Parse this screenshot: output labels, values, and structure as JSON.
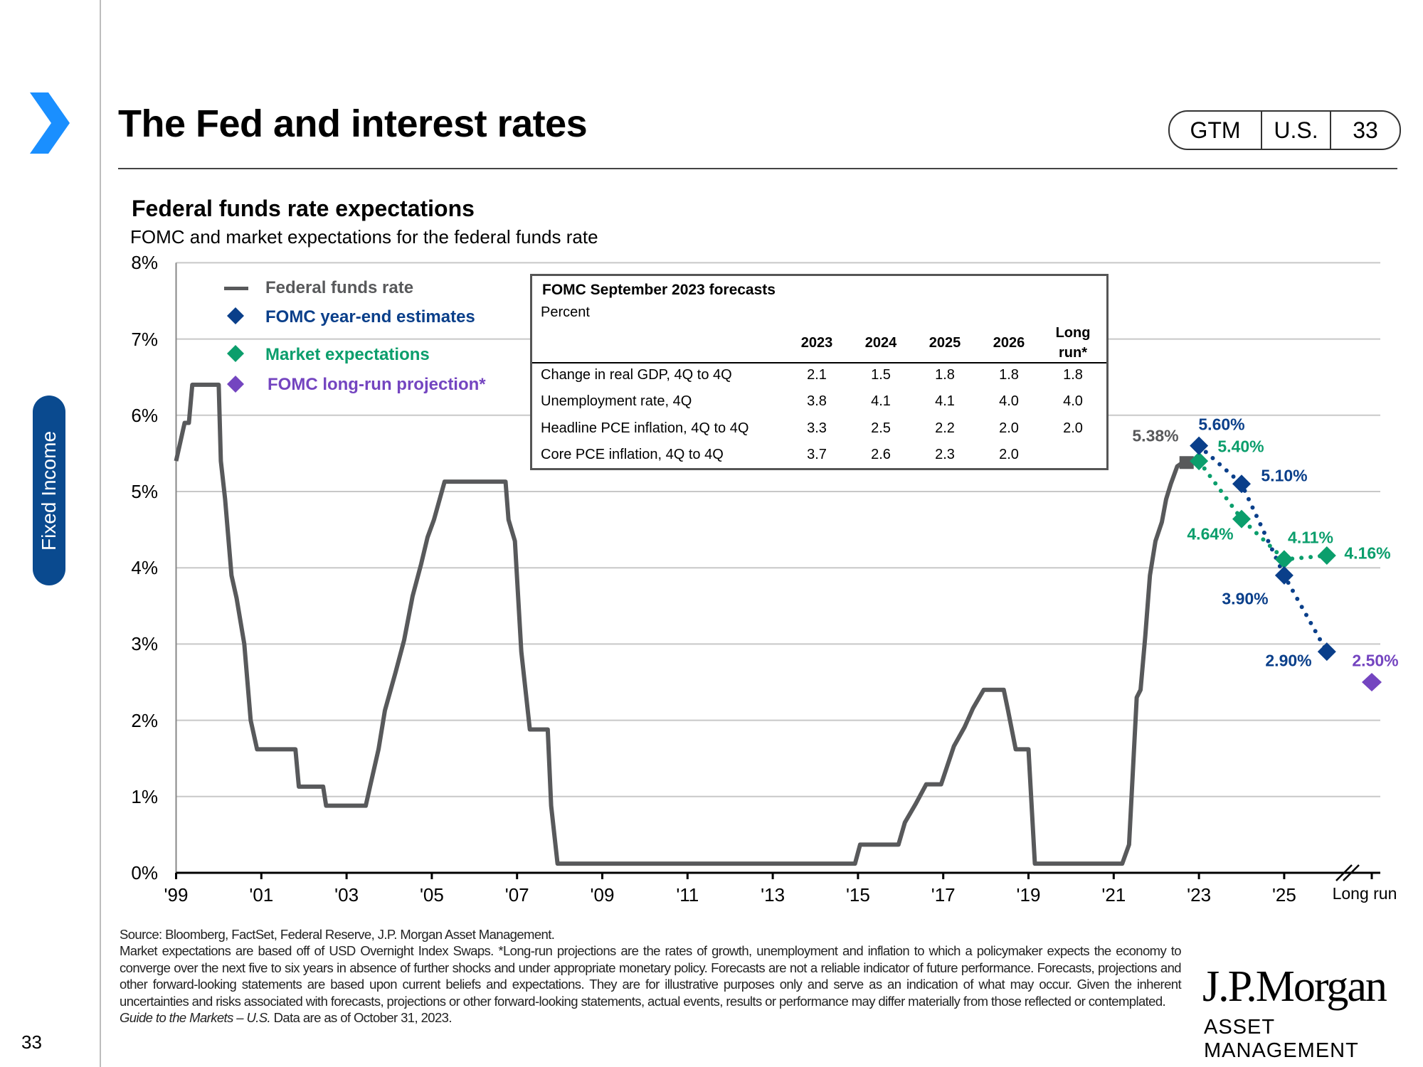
{
  "sidebar": {
    "section": "Fixed Income",
    "page_number": "33",
    "icon": "chevron-right-icon",
    "accent": "#1a8fff"
  },
  "header": {
    "title": "The Fed and interest rates",
    "badges": [
      "GTM",
      "U.S.",
      "33"
    ]
  },
  "chart_data": {
    "type": "line",
    "title": "Federal funds rate expectations",
    "subtitle": "FOMC and market expectations for the federal funds rate",
    "y_ticks": [
      "0%",
      "1%",
      "2%",
      "3%",
      "4%",
      "5%",
      "6%",
      "7%",
      "8%"
    ],
    "ylim": [
      0,
      8
    ],
    "x_ticks": [
      "'99",
      "'01",
      "'03",
      "'05",
      "'07",
      "'09",
      "'11",
      "'13",
      "'15",
      "'17",
      "'19",
      "'21",
      "'23",
      "'25",
      "Long run"
    ],
    "grid": true,
    "legend_placement": "top-left",
    "legend": [
      "Federal funds rate",
      "FOMC  year-end estimates",
      "Market expectations",
      "FOMC  long-run  projection*"
    ],
    "colors": {
      "fed_funds": "#58595b",
      "fomc": "#0a3f8a",
      "market": "#0b9e6c",
      "long_run": "#7445c0"
    },
    "series": [
      {
        "name": "Federal funds rate",
        "style": "step-line",
        "points": [
          [
            1999.0,
            5.4
          ],
          [
            1999.1,
            5.65
          ],
          [
            1999.2,
            5.9
          ],
          [
            1999.3,
            5.9
          ],
          [
            1999.38,
            6.4
          ],
          [
            2000.0,
            6.4
          ],
          [
            2000.05,
            5.4
          ],
          [
            2000.15,
            4.9
          ],
          [
            2000.3,
            3.9
          ],
          [
            2000.42,
            3.6
          ],
          [
            2000.6,
            3.0
          ],
          [
            2000.75,
            2.0
          ],
          [
            2000.9,
            1.62
          ],
          [
            2001.8,
            1.62
          ],
          [
            2001.88,
            1.13
          ],
          [
            2002.45,
            1.13
          ],
          [
            2002.52,
            0.88
          ],
          [
            2003.45,
            0.88
          ],
          [
            2003.55,
            1.13
          ],
          [
            2003.75,
            1.62
          ],
          [
            2003.9,
            2.13
          ],
          [
            2004.15,
            2.63
          ],
          [
            2004.35,
            3.05
          ],
          [
            2004.55,
            3.63
          ],
          [
            2004.75,
            4.05
          ],
          [
            2004.9,
            4.4
          ],
          [
            2005.05,
            4.63
          ],
          [
            2005.3,
            5.13
          ],
          [
            2006.73,
            5.13
          ],
          [
            2006.8,
            4.63
          ],
          [
            2006.95,
            4.35
          ],
          [
            2007.1,
            2.9
          ],
          [
            2007.3,
            1.88
          ],
          [
            2007.72,
            1.88
          ],
          [
            2007.8,
            0.88
          ],
          [
            2007.95,
            0.12
          ],
          [
            2014.93,
            0.12
          ],
          [
            2015.05,
            0.37
          ],
          [
            2015.95,
            0.37
          ],
          [
            2016.1,
            0.66
          ],
          [
            2016.35,
            0.9
          ],
          [
            2016.6,
            1.16
          ],
          [
            2016.95,
            1.16
          ],
          [
            2017.1,
            1.41
          ],
          [
            2017.25,
            1.66
          ],
          [
            2017.5,
            1.91
          ],
          [
            2017.7,
            2.16
          ],
          [
            2017.95,
            2.4
          ],
          [
            2018.42,
            2.4
          ],
          [
            2018.52,
            2.13
          ],
          [
            2018.7,
            1.62
          ],
          [
            2019.0,
            1.62
          ],
          [
            2019.15,
            0.12
          ],
          [
            2021.2,
            0.12
          ],
          [
            2021.36,
            0.37
          ],
          [
            2021.54,
            2.3
          ],
          [
            2021.63,
            2.4
          ],
          [
            2021.74,
            3.1
          ],
          [
            2021.85,
            3.9
          ],
          [
            2021.98,
            4.35
          ],
          [
            2022.13,
            4.6
          ],
          [
            2022.23,
            4.9
          ],
          [
            2022.34,
            5.1
          ],
          [
            2022.49,
            5.33
          ],
          [
            2022.62,
            5.38
          ],
          [
            2022.81,
            5.38
          ]
        ],
        "last_label": "5.38%"
      },
      {
        "name": "FOMC  year-end estimates",
        "x": [
          "2023",
          "2024",
          "2025",
          "2026"
        ],
        "values": [
          5.6,
          5.1,
          3.9,
          2.9
        ],
        "labels": [
          "5.60%",
          "5.10%",
          "3.90%",
          "2.90%"
        ]
      },
      {
        "name": "Market expectations",
        "x": [
          "2023",
          "2024",
          "2025",
          "2026"
        ],
        "values": [
          5.4,
          4.64,
          4.11,
          4.16
        ],
        "labels": [
          "5.40%",
          "4.64%",
          "4.11%",
          "4.16%"
        ]
      },
      {
        "name": "FOMC  long-run  projection*",
        "x": [
          "Long run"
        ],
        "values": [
          2.5
        ],
        "labels": [
          "2.50%"
        ]
      }
    ]
  },
  "table": {
    "title": "FOMC September 2023 forecasts",
    "unit": "Percent",
    "columns": [
      "2023",
      "2024",
      "2025",
      "2026",
      "Long",
      "run*"
    ],
    "rows": [
      {
        "label": "Change in real GDP, 4Q to 4Q",
        "values": [
          "2.1",
          "1.5",
          "1.8",
          "1.8",
          "1.8"
        ]
      },
      {
        "label": "Unemployment rate, 4Q",
        "values": [
          "3.8",
          "4.1",
          "4.1",
          "4.0",
          "4.0"
        ]
      },
      {
        "label": "Headline PCE inflation, 4Q to 4Q",
        "values": [
          "3.3",
          "2.5",
          "2.2",
          "2.0",
          "2.0"
        ]
      },
      {
        "label": "Core PCE inflation, 4Q to 4Q",
        "values": [
          "3.7",
          "2.6",
          "2.3",
          "2.0",
          ""
        ]
      }
    ]
  },
  "footnote": {
    "source": "Source: Bloomberg, FactSet, Federal Reserve, J.P. Morgan Asset Management.",
    "body": "Market expectations are based off of USD Overnight Index Swaps. *Long-run projections are the rates of growth, unemployment and inflation to which a policymaker expects the economy to converge over the next five to six years in absence of further shocks and under appropriate monetary policy. Forecasts are not a reliable indicator of future performance. Forecasts, projections and other forward-looking statements are based upon current beliefs and expectations. They are for illustrative purposes only and serve as an indication of what may occur. Given the inherent uncertainties and risks associated with forecasts, projections or other forward-looking statements, actual events, results or performance may differ materially from those reflected or contemplated.",
    "guide": "Guide to the Markets – U.S.",
    "asof": " Data are as of October 31, 2023."
  },
  "logo": {
    "line1": "J.P.Morgan",
    "line2": "ASSET MANAGEMENT"
  }
}
